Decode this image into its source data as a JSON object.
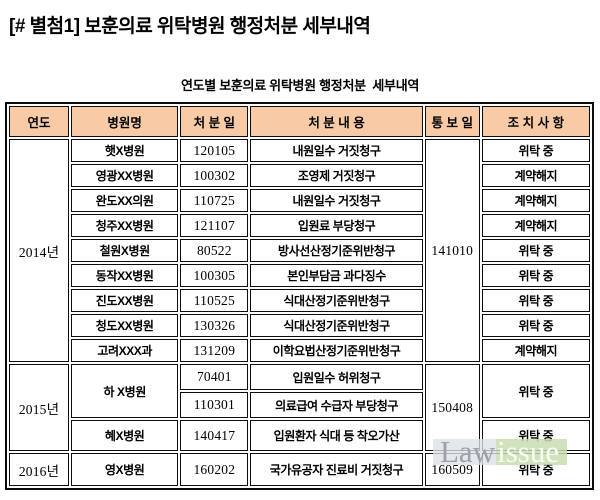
{
  "page": {
    "title": "[# 별첨1] 보훈의료 위탁병원 행정처분 세부내역",
    "table_caption": "연도별 보훈의료 위탁병원 행정처분  세부내역"
  },
  "table": {
    "headers": [
      "연도",
      "병원명",
      "처 분 일",
      "처 분 내 용",
      "통 보 일",
      "조 치 사 항"
    ],
    "groups": [
      {
        "year": "2014년",
        "notify_date": "141010",
        "rows": [
          {
            "hospital": "햇X병원",
            "date": "120105",
            "content": "내원일수 거짓청구",
            "action": "위탁 중"
          },
          {
            "hospital": "영광XX병원",
            "date": "100302",
            "content": "조영제 거짓청구",
            "action": "계약해지"
          },
          {
            "hospital": "완도XX의원",
            "date": "110725",
            "content": "내원일수 거짓청구",
            "action": "계약해지"
          },
          {
            "hospital": "청주XX병원",
            "date": "121107",
            "content": "입원료 부당청구",
            "action": "계약해지"
          },
          {
            "hospital": "철원X병원",
            "date": "80522",
            "content": "방사선산정기준위반청구",
            "action": "위탁 중"
          },
          {
            "hospital": "동작XX병원",
            "date": "100305",
            "content": "본인부담금 과다징수",
            "action": "위탁 중"
          },
          {
            "hospital": "진도XX병원",
            "date": "110525",
            "content": "식대산정기준위반청구",
            "action": "위탁 중"
          },
          {
            "hospital": "청도XX병원",
            "date": "130326",
            "content": "식대산정기준위반청구",
            "action": "위탁 중"
          },
          {
            "hospital": "고려XXX과",
            "date": "131209",
            "content": "이학요법산정기준위반청구",
            "action": "계약해지"
          }
        ]
      },
      {
        "year": "2015년",
        "notify_date": "150408",
        "rows": [
          {
            "hospital": "하 X병원",
            "hospital_rowspan": 2,
            "date": "70401",
            "content": "입원일수 허위청구",
            "action": "위탁 중",
            "action_rowspan": 2
          },
          {
            "date": "110301",
            "content": "의료급여 수급자 부당청구"
          },
          {
            "hospital": "혜X병원",
            "date": "140417",
            "content": "입원환자 식대 등 착오가산",
            "action": "위탁 중"
          }
        ]
      },
      {
        "year": "2016년",
        "notify_date": "160509",
        "rows": [
          {
            "hospital": "영X병원",
            "date": "160202",
            "content": "국가유공자 진료비 거짓청구",
            "action": "위탁 중"
          }
        ]
      }
    ]
  },
  "watermark": {
    "part1": "Law",
    "part2": "issue"
  },
  "colors": {
    "header_bg": "#F8CBA6",
    "border": "#0d0d0d",
    "watermark_law_bg": "rgba(222,225,228,0.78)",
    "watermark_law_text": "#9BA2AA",
    "watermark_issue_bg": "rgba(202,221,179,0.85)",
    "watermark_issue_text": "#FBFCF2"
  }
}
